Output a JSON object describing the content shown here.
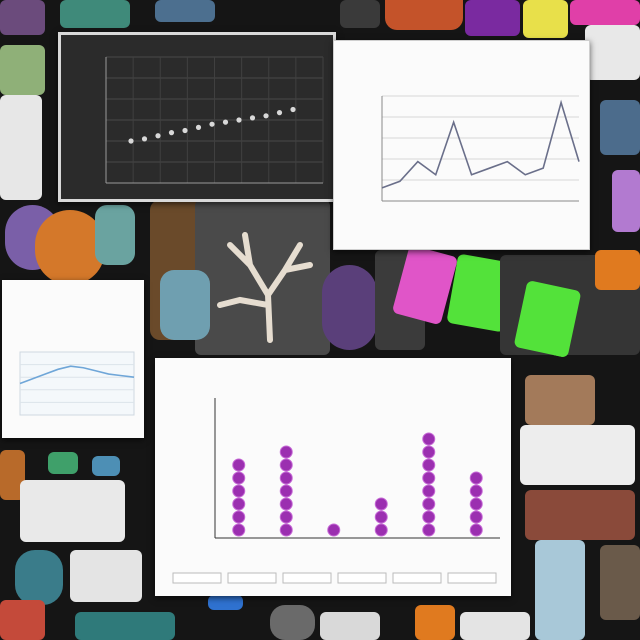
{
  "collage": {
    "description_free": true
  },
  "charts": {
    "dark_chart": {
      "type": "scatter",
      "title": "",
      "points": [
        4,
        4.2,
        4.5,
        4.8,
        5.0,
        5.3,
        5.6,
        5.8,
        6.0,
        6.2,
        6.4,
        6.7,
        7.0
      ]
    },
    "line_chart": {
      "type": "line",
      "title": "",
      "points": [
        2,
        3,
        6,
        4,
        12,
        4,
        5,
        6,
        4,
        5,
        15,
        6
      ]
    },
    "small_chart": {
      "type": "line",
      "title": "",
      "points": [
        5.0,
        5.3,
        5.6,
        5.9,
        6.1,
        6.0,
        5.8,
        5.6,
        5.5,
        5.4
      ]
    },
    "bar_chart": {
      "type": "bar",
      "title": "",
      "values": [
        6,
        7,
        1,
        3,
        8,
        5
      ]
    }
  },
  "chart_data": [
    {
      "type": "scatter",
      "title": "",
      "x": [
        1,
        2,
        3,
        4,
        5,
        6,
        7,
        8,
        9,
        10,
        11,
        12,
        13
      ],
      "y": [
        4,
        4.2,
        4.5,
        4.8,
        5.0,
        5.3,
        5.6,
        5.8,
        6.0,
        6.2,
        6.4,
        6.7,
        7.0
      ]
    },
    {
      "type": "line",
      "title": "",
      "x": [
        1,
        2,
        3,
        4,
        5,
        6,
        7,
        8,
        9,
        10,
        11,
        12
      ],
      "y": [
        2,
        3,
        6,
        4,
        12,
        4,
        5,
        6,
        4,
        5,
        15,
        6
      ]
    },
    {
      "type": "line",
      "title": "",
      "x": [
        1,
        2,
        3,
        4,
        5,
        6,
        7,
        8,
        9,
        10
      ],
      "y": [
        5.0,
        5.3,
        5.6,
        5.9,
        6.1,
        6.0,
        5.8,
        5.6,
        5.5,
        5.4
      ]
    },
    {
      "type": "bar",
      "title": "",
      "values": [
        6,
        7,
        1,
        3,
        8,
        5
      ]
    }
  ],
  "colors": {
    "background": "#151515",
    "purple": "#9b2fb0",
    "lime": "#53e23a",
    "pink": "#e055c8",
    "orange": "#e07a1f"
  }
}
